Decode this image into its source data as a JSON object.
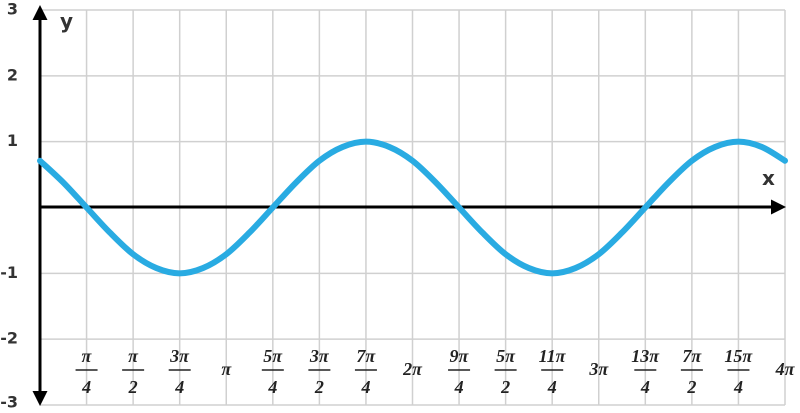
{
  "chart_data": {
    "type": "line",
    "xlabel": "x",
    "ylabel": "y",
    "x": [
      0,
      0.3927,
      0.7854,
      1.1781,
      1.5708,
      1.9635,
      2.3562,
      2.7489,
      3.1416,
      3.5343,
      3.927,
      4.3197,
      4.7124,
      5.1051,
      5.4978,
      5.8905,
      6.2832,
      6.6759,
      7.0686,
      7.4613,
      7.854,
      8.2467,
      8.6394,
      9.0321,
      9.4248,
      9.8175,
      10.2102,
      10.6029,
      10.9956,
      11.3883,
      11.781,
      12.1737,
      12.5664
    ],
    "values": [
      0.71,
      0.38,
      0,
      -0.38,
      -0.71,
      -0.92,
      -1,
      -0.92,
      -0.71,
      -0.38,
      0,
      0.38,
      0.71,
      0.92,
      1,
      0.92,
      0.71,
      0.38,
      0,
      -0.38,
      -0.71,
      -0.92,
      -1,
      -0.92,
      -0.71,
      -0.38,
      0,
      0.38,
      0.71,
      0.92,
      1,
      0.92,
      0.71
    ],
    "color": "#29abe2",
    "xlim": [
      0,
      12.5664
    ],
    "ylim": [
      -3,
      3
    ],
    "xticks": [
      {
        "value": 0.7854,
        "label": "π/4"
      },
      {
        "value": 1.5708,
        "label": "π/2"
      },
      {
        "value": 2.3562,
        "label": "3π/4"
      },
      {
        "value": 3.1416,
        "label": "π"
      },
      {
        "value": 3.927,
        "label": "5π/4"
      },
      {
        "value": 4.7124,
        "label": "3π/2"
      },
      {
        "value": 5.4978,
        "label": "7π/4"
      },
      {
        "value": 6.2832,
        "label": "2π"
      },
      {
        "value": 7.0686,
        "label": "9π/4"
      },
      {
        "value": 7.854,
        "label": "5π/2"
      },
      {
        "value": 8.6394,
        "label": "11π/4"
      },
      {
        "value": 9.4248,
        "label": "3π"
      },
      {
        "value": 10.2102,
        "label": "13π/4"
      },
      {
        "value": 10.9956,
        "label": "7π/2"
      },
      {
        "value": 11.781,
        "label": "15π/4"
      },
      {
        "value": 12.5664,
        "label": "4π"
      }
    ],
    "yticks": [
      -3,
      -2,
      -1,
      1,
      2,
      3
    ],
    "grid": true
  }
}
